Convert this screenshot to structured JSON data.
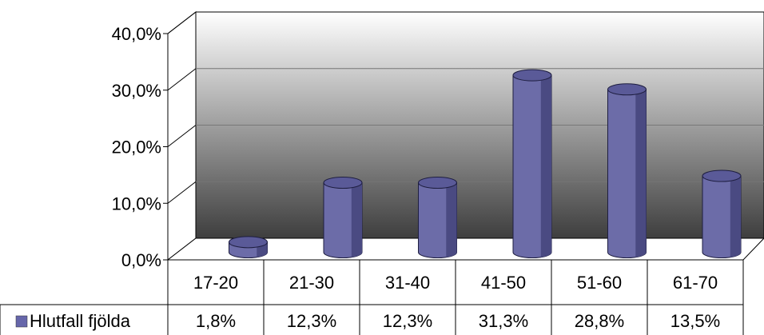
{
  "chart_data": {
    "type": "bar",
    "categories": [
      "17-20",
      "21-30",
      "31-40",
      "41-50",
      "51-60",
      "61-70"
    ],
    "series": [
      {
        "name": "Hlutfall fjölda",
        "values": [
          1.8,
          12.3,
          12.3,
          31.3,
          28.8,
          13.5
        ],
        "value_labels": [
          "1,8%",
          "12,3%",
          "12,3%",
          "31,3%",
          "28,8%",
          "13,5%"
        ]
      }
    ],
    "y_ticks": [
      "0,0%",
      "10,0%",
      "20,0%",
      "30,0%",
      "40,0%"
    ],
    "ylim": [
      0,
      40
    ],
    "title": "",
    "xlabel": "",
    "ylabel": "",
    "legend": "data-table",
    "bar_style": "3d-cylinder",
    "grid": true,
    "colors": {
      "bar_front": "#6c6ca8",
      "bar_side": "#4a4a82",
      "bar_top": "#5a5a98",
      "legend_key": "#6666aa",
      "background_top": "#ffffff",
      "background_bottom": "#404040"
    }
  }
}
